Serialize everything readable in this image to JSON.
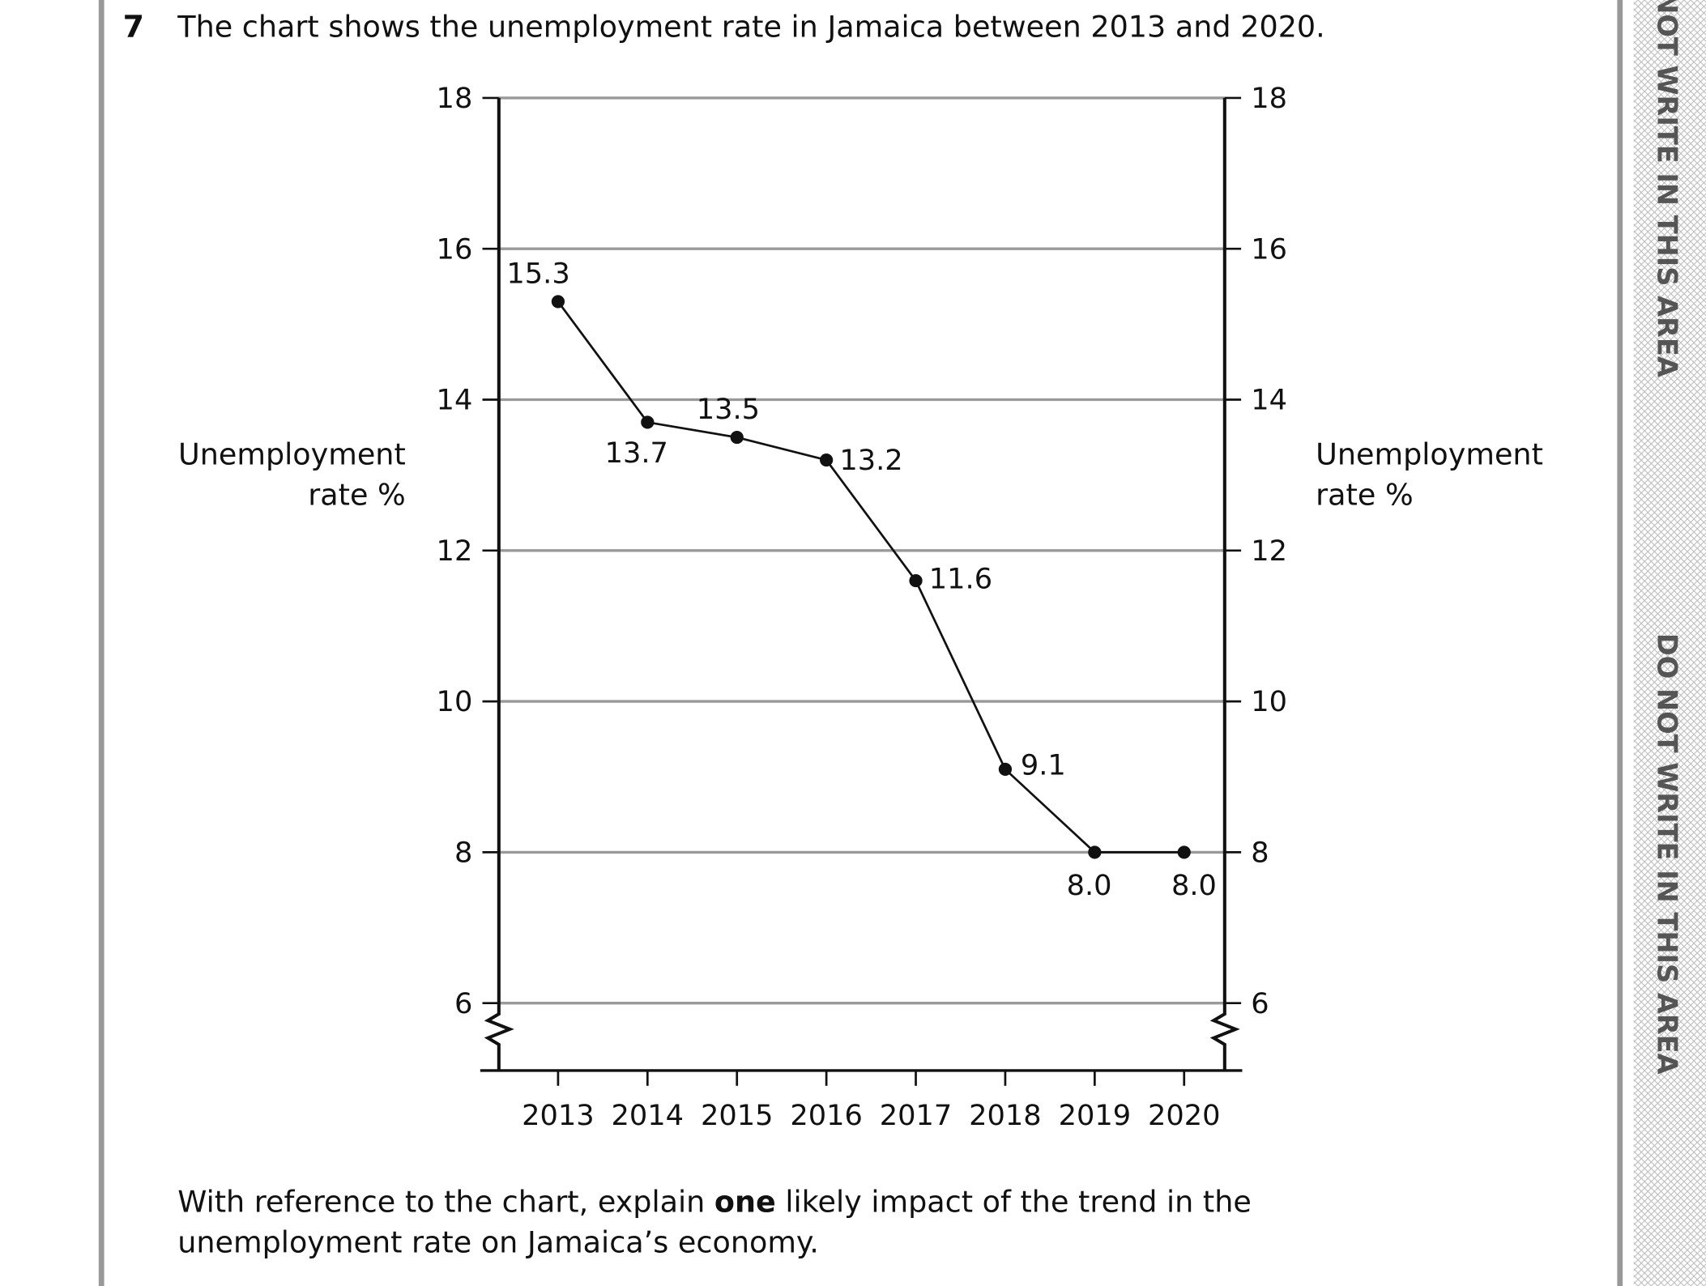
{
  "question": {
    "number": "7",
    "text": "The chart shows the unemployment rate in Jamaica between 2013 and 2020."
  },
  "chart_data": {
    "type": "line",
    "categories": [
      "2013",
      "2014",
      "2015",
      "2016",
      "2017",
      "2018",
      "2019",
      "2020"
    ],
    "values": [
      15.3,
      13.7,
      13.5,
      13.2,
      11.6,
      9.1,
      8.0,
      8.0
    ],
    "value_labels": [
      "15.3",
      "13.7",
      "13.5",
      "13.2",
      "11.6",
      "9.1",
      "8.0",
      "8.0"
    ],
    "color": "#111111",
    "y_label": [
      "Unemployment",
      "rate %"
    ],
    "y2_label": [
      "Unemployment",
      "rate %"
    ],
    "ylim": [
      6,
      18
    ],
    "yticks": [
      6,
      8,
      10,
      12,
      14,
      16,
      18
    ],
    "y2lim": [
      6,
      18
    ],
    "y2ticks": [
      6,
      8,
      10,
      12,
      14,
      16,
      18
    ],
    "grid": true
  },
  "prompt": {
    "lines": [
      [
        "With reference to the chart, explain ",
        "one",
        " likely impact of the trend in the"
      ],
      "unemployment rate on Jamaica’s economy."
    ]
  },
  "margin": {
    "texts": [
      "NOT WRITE IN THIS AREA",
      "DO NOT WRITE IN THIS AREA"
    ]
  }
}
